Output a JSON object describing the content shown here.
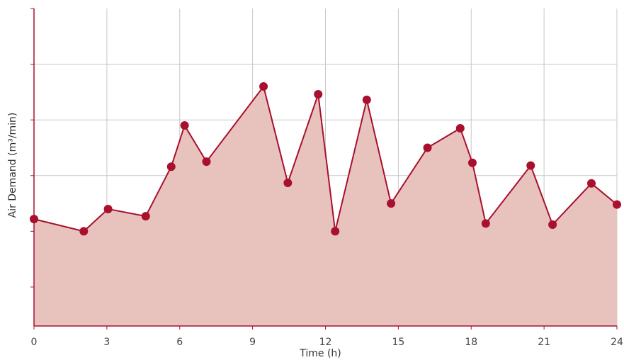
{
  "chart_data": {
    "type": "area",
    "title": "",
    "xlabel": "Time (h)",
    "ylabel": "Air Demand (m³/min)",
    "xlim": [
      0,
      24
    ],
    "ylim": [
      0,
      5.7
    ],
    "x_ticks": [
      0,
      3,
      6,
      9,
      12,
      15,
      18,
      21,
      24
    ],
    "x_tick_labels": [
      "0",
      "3",
      "6",
      "9",
      "12",
      "15",
      "18",
      "21",
      "24"
    ],
    "y_gridlines": [
      0.7,
      1.7,
      2.7,
      3.7,
      4.7
    ],
    "y_tick_labels_shown": false,
    "grid": true,
    "series": [
      {
        "x": [
          0,
          2.05,
          3.05,
          4.6,
          5.65,
          6.2,
          7.1,
          9.45,
          10.45,
          11.7,
          12.4,
          13.7,
          14.7,
          16.2,
          17.55,
          18.05,
          18.6,
          20.45,
          21.35,
          22.95,
          24
        ],
        "y": [
          1.92,
          1.7,
          2.1,
          1.97,
          2.86,
          3.6,
          2.95,
          4.3,
          2.57,
          4.16,
          1.7,
          4.06,
          2.2,
          3.2,
          3.55,
          2.93,
          1.84,
          2.88,
          1.82,
          2.56,
          2.18
        ]
      }
    ],
    "colors": {
      "line": "#A8102E",
      "marker": "#A8102E",
      "fill": "#E8C3BE",
      "grid": "#C8C8C8",
      "axis": "#A8102E"
    }
  }
}
